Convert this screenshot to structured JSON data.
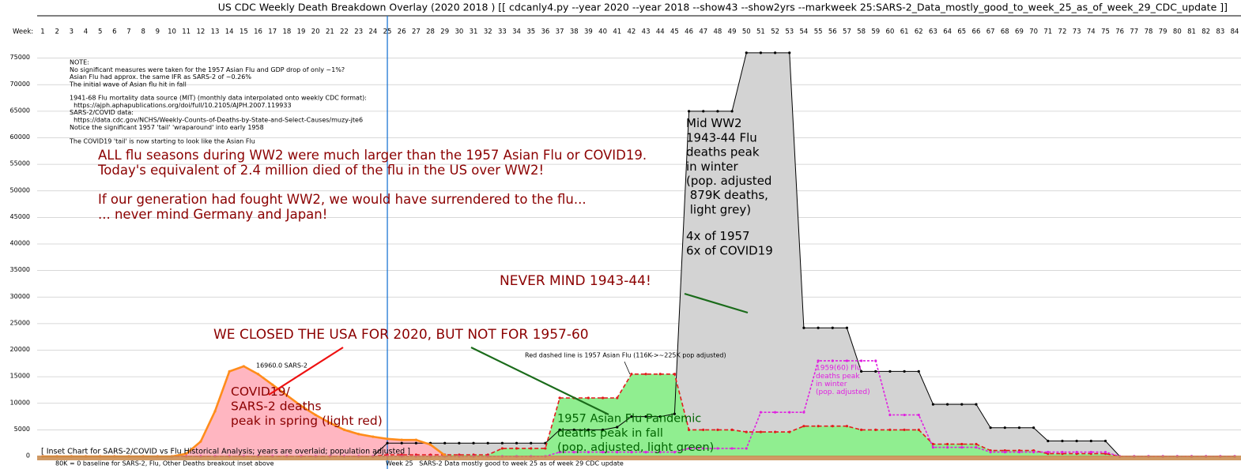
{
  "chart_data": {
    "type": "line",
    "title": "US CDC Weekly Death Breakdown Overlay (2020 2018 ) [[ cdcanly4.py --year 2020 --year 2018 --show43  --show2yrs  --markweek 25:SARS-2_Data_mostly_good_to_week_25_as_of_week_29_CDC_update ]]",
    "x_label": "Week:",
    "x": [
      1,
      2,
      3,
      4,
      5,
      6,
      7,
      8,
      9,
      10,
      11,
      12,
      13,
      14,
      15,
      16,
      17,
      18,
      19,
      20,
      21,
      22,
      23,
      24,
      25,
      26,
      27,
      28,
      29,
      30,
      31,
      32,
      33,
      34,
      35,
      36,
      37,
      38,
      39,
      40,
      41,
      42,
      43,
      44,
      45,
      46,
      47,
      48,
      49,
      50,
      51,
      52,
      53,
      54,
      55,
      56,
      57,
      58,
      59,
      60,
      61,
      62,
      63,
      64,
      65,
      66,
      67,
      68,
      69,
      70,
      71,
      72,
      73,
      74,
      75,
      76,
      77,
      78,
      79,
      80,
      81,
      82,
      83,
      84
    ],
    "xlim": [
      1,
      84
    ],
    "xticks": [
      1,
      2,
      3,
      4,
      5,
      6,
      7,
      8,
      9,
      10,
      11,
      12,
      13,
      14,
      15,
      16,
      17,
      18,
      19,
      20,
      21,
      22,
      23,
      24,
      25,
      26,
      27,
      28,
      29,
      30,
      31,
      32,
      33,
      34,
      35,
      36,
      37,
      38,
      39,
      40,
      41,
      42,
      43,
      44,
      45,
      46,
      47,
      48,
      49,
      50,
      51,
      52,
      53,
      54,
      55,
      56,
      57,
      58,
      59,
      60,
      61,
      62,
      63,
      64,
      65,
      66,
      67,
      68,
      69,
      70,
      71,
      72,
      73,
      74,
      75,
      76,
      77,
      78,
      79,
      80,
      81,
      82,
      83,
      84
    ],
    "ylim": [
      0,
      80000
    ],
    "yticks": [
      0,
      5000,
      10000,
      15000,
      20000,
      25000,
      30000,
      35000,
      40000,
      45000,
      50000,
      55000,
      60000,
      65000,
      70000,
      75000
    ],
    "grid": true,
    "mark_week": 25,
    "series": [
      {
        "color": "#000000",
        "fill": "#d3d3d3",
        "dashed": false,
        "values": [
          null,
          null,
          null,
          null,
          null,
          null,
          null,
          null,
          null,
          null,
          null,
          null,
          null,
          null,
          null,
          null,
          null,
          null,
          null,
          null,
          null,
          null,
          null,
          0,
          2500,
          2500,
          2500,
          2500,
          2500,
          2500,
          2500,
          2500,
          2500,
          2500,
          2500,
          2500,
          5000,
          5000,
          5000,
          5000,
          5500,
          7500,
          7500,
          7500,
          8000,
          65000,
          65000,
          65000,
          65000,
          76000,
          76000,
          76000,
          76000,
          24200,
          24200,
          24200,
          24200,
          16000,
          16000,
          16000,
          16000,
          16000,
          9800,
          9800,
          9800,
          9800,
          5400,
          5400,
          5400,
          5400,
          2900,
          2900,
          2900,
          2900,
          2900,
          0,
          0,
          0,
          0,
          0,
          0,
          0,
          0,
          0
        ]
      },
      {
        "color": "#e31a1c",
        "fill": "#90ee90",
        "dashed": true,
        "values": [
          0,
          0,
          0,
          0,
          0,
          0,
          0,
          0,
          0,
          0,
          0,
          0,
          0,
          0,
          0,
          0,
          0,
          0,
          0,
          0,
          0,
          0,
          0,
          0,
          300,
          300,
          300,
          300,
          300,
          300,
          300,
          300,
          1500,
          1500,
          1500,
          1500,
          11000,
          11000,
          11000,
          11000,
          11000,
          15500,
          15500,
          15500,
          15500,
          5000,
          5000,
          5000,
          5000,
          4600,
          4600,
          4600,
          4600,
          5700,
          5700,
          5700,
          5700,
          5000,
          5000,
          5000,
          5000,
          5000,
          2300,
          2300,
          2300,
          2300,
          1100,
          1100,
          1100,
          1100,
          500,
          500,
          500,
          500,
          500,
          0,
          0,
          0,
          0,
          0,
          0,
          0,
          0,
          0
        ]
      },
      {
        "color": "#e020e0",
        "fill": null,
        "dashed": true,
        "values": [
          0,
          0,
          0,
          0,
          0,
          0,
          0,
          0,
          0,
          0,
          0,
          0,
          0,
          0,
          0,
          0,
          0,
          0,
          0,
          0,
          0,
          0,
          0,
          0,
          0,
          0,
          0,
          0,
          0,
          0,
          0,
          0,
          0,
          0,
          0,
          0,
          800,
          800,
          800,
          800,
          800,
          800,
          800,
          800,
          800,
          1500,
          1500,
          1500,
          1500,
          1500,
          8300,
          8300,
          8300,
          8300,
          18000,
          18000,
          18000,
          18000,
          18000,
          7800,
          7800,
          7800,
          1700,
          1700,
          1700,
          1700,
          800,
          800,
          800,
          800,
          800,
          800,
          800,
          800,
          800,
          0,
          0,
          0,
          0,
          0,
          0,
          0,
          0,
          0
        ]
      },
      {
        "color": "#ff8c1a",
        "fill": "#ffb6c1",
        "dashed": false,
        "values": [
          0,
          0,
          0,
          0,
          0,
          0,
          0,
          0,
          0,
          0,
          500,
          2800,
          8500,
          16000,
          16960,
          15500,
          13500,
          11500,
          9500,
          7800,
          6300,
          5000,
          4200,
          3700,
          3300,
          3100,
          3100,
          2200,
          200,
          null,
          null,
          null,
          null,
          null,
          null,
          null,
          null,
          null,
          null,
          null,
          null,
          null,
          null,
          null,
          null,
          null,
          null,
          null,
          null,
          null,
          null,
          null,
          null,
          null,
          null,
          null,
          null,
          null,
          null,
          null,
          null,
          null,
          null,
          null,
          null,
          null,
          null,
          null,
          null,
          null,
          null,
          null,
          null,
          null,
          null,
          null,
          null,
          null,
          null,
          null,
          null,
          null,
          null,
          null
        ]
      }
    ],
    "annotations": [
      {
        "color": "#000000",
        "lines": [
          "NOTE:",
          "No significant measures were taken for the 1957 Asian Flu and GDP drop of only ~1%?",
          "Asian Flu had approx. the same IFR as SARS-2 of ~0.26%",
          "The initial wave of Asian flu hit in fall"
        ]
      },
      {
        "color": "#000000",
        "lines": [
          "1941-68 Flu mortality data source (MIT) (monthly data interpolated onto weekly CDC format):",
          "  https://ajph.aphapublications.org/doi/full/10.2105/AJPH.2007.119933",
          "SARS-2/COVID data:",
          "  https://data.cdc.gov/NCHS/Weekly-Counts-of-Deaths-by-State-and-Select-Causes/muzy-jte6",
          "Notice the significant 1957 'tail' 'wraparound' into early 1958"
        ]
      },
      {
        "color": "#000000",
        "lines": [
          "The COVID19 'tail' is now starting to look like the Asian Flu"
        ]
      },
      {
        "color": "#8b0000",
        "lines": [
          "ALL flu seasons during WW2 were much larger than the 1957 Asian Flu or COVID19.",
          "Today's equivalent of 2.4 million died of the flu in the US over WW2!"
        ]
      },
      {
        "color": "#8b0000",
        "lines": [
          "If our generation had fought WW2, we would have surrendered to the flu...",
          "... never mind Germany and Japan!"
        ]
      },
      {
        "color": "#000000",
        "lines": [
          "Mid WW2",
          "1943-44 Flu",
          "deaths peak",
          "in winter",
          "(pop. adjusted",
          " 879K deaths,",
          " light grey)"
        ]
      },
      {
        "color": "#000000",
        "lines": [
          "4x of 1957",
          "6x of COVID19"
        ]
      },
      {
        "color": "#8b0000",
        "lines": [
          "NEVER MIND 1943-44!"
        ]
      },
      {
        "color": "#8b0000",
        "lines": [
          "WE CLOSED THE USA FOR 2020, BUT NOT FOR 1957-60"
        ]
      },
      {
        "color": "#000000",
        "lines": [
          "16960.0 SARS-2"
        ]
      },
      {
        "color": "#000000",
        "lines": [
          "Red dashed line is 1957 Asian Flu (116K->~225K pop adjusted)"
        ]
      },
      {
        "color": "#e020e0",
        "lines": [
          "1959(60) Flu",
          "deaths peak",
          "in winter",
          "(pop. adjusted)"
        ]
      },
      {
        "color": "#8b0000",
        "lines": [
          "COVID19/",
          "SARS-2 deaths",
          "peak in spring (light red)"
        ]
      },
      {
        "color": "#006400",
        "lines": [
          "1957 Asian Flu Pandemic",
          "deaths peak in fall",
          "(pop. adjusted, light green)"
        ]
      },
      {
        "color": "#000000",
        "lines": [
          "[ Inset Chart for SARS-2/COVID vs Flu Historical Analysis; years are overlaid; population adjusted ]"
        ]
      },
      {
        "color": "#000000",
        "lines": [
          "80K = 0 baseline for SARS-2, Flu, Other Deaths breakout inset above"
        ]
      },
      {
        "color": "#000000",
        "lines": [
          "Week 25   SARS-2 Data mostly good to week 25 as of week 29 CDC update"
        ]
      }
    ]
  }
}
